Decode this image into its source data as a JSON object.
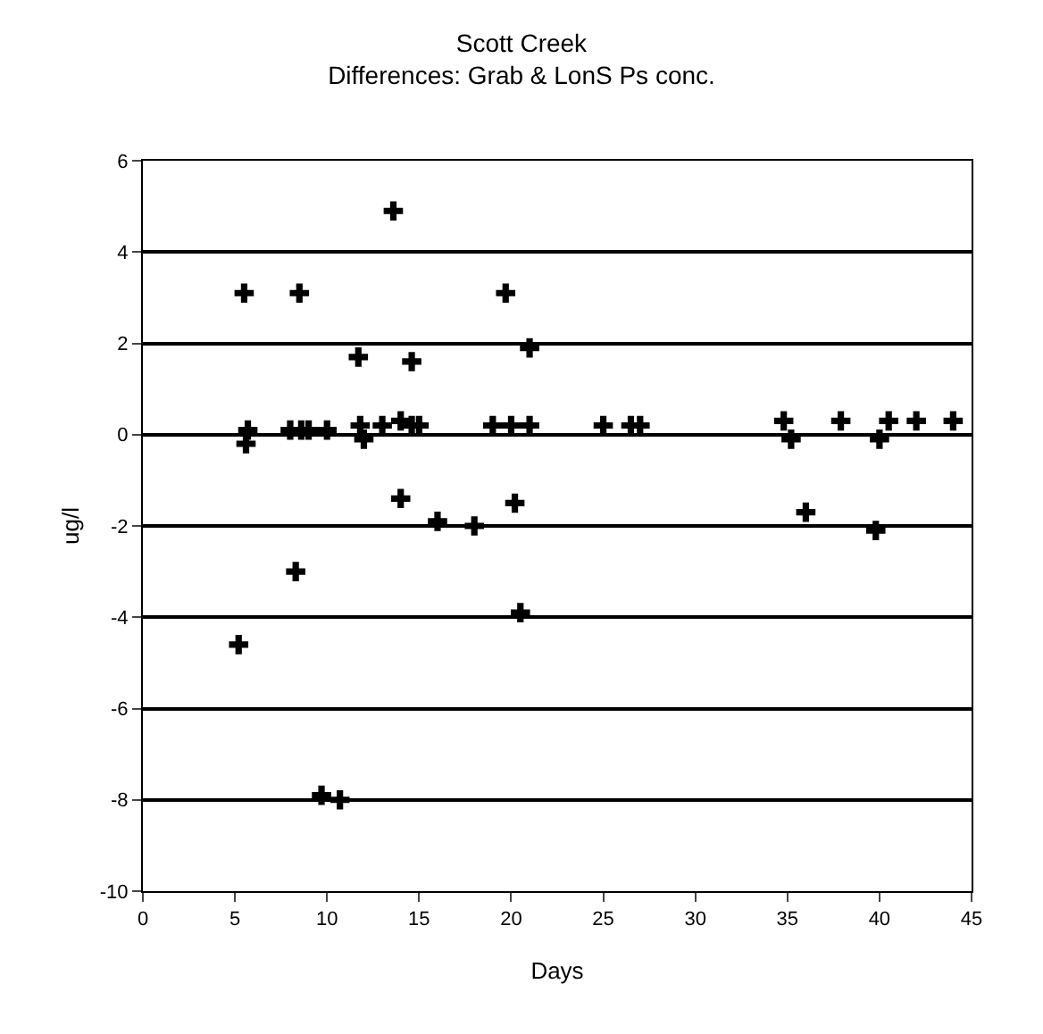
{
  "chart_data": {
    "type": "scatter",
    "title": "Scott Creek",
    "subtitle": "Differences: Grab & LonS Ps conc.",
    "xlabel": "Days",
    "ylabel": "ug/l",
    "x": [
      5.2,
      5.5,
      5.7,
      5.6,
      8,
      8.3,
      8.5,
      8.6,
      9,
      10,
      9.7,
      10.7,
      11.7,
      11.8,
      12,
      13,
      13.6,
      14,
      14,
      14.6,
      14.6,
      15,
      16,
      18,
      19,
      19.7,
      20,
      20.2,
      20.5,
      21,
      21,
      25,
      26.5,
      27,
      34.8,
      35.2,
      36,
      37.9,
      39.8,
      40,
      40.5,
      42,
      44
    ],
    "values": [
      -4.6,
      3.1,
      0.1,
      -0.2,
      0.1,
      -3.0,
      3.1,
      0.1,
      0.1,
      0.1,
      -7.9,
      -8.0,
      1.7,
      0.2,
      -0.1,
      0.2,
      4.9,
      0.3,
      -1.4,
      1.6,
      0.2,
      0.2,
      -1.9,
      -2.0,
      0.2,
      3.1,
      0.2,
      -1.5,
      -3.9,
      1.9,
      0.2,
      0.2,
      0.2,
      0.2,
      0.3,
      -0.1,
      -1.7,
      0.3,
      -2.1,
      -0.1,
      0.3,
      0.3,
      0.3
    ],
    "color": "#000000",
    "marker": "cross",
    "xlim": [
      0,
      45
    ],
    "xticks": [
      0,
      5,
      10,
      15,
      20,
      25,
      30,
      35,
      40,
      45
    ],
    "ylim": [
      -10,
      6
    ],
    "yticks": [
      -10,
      -8,
      -6,
      -4,
      -2,
      0,
      2,
      4,
      6
    ],
    "grid": "y"
  }
}
